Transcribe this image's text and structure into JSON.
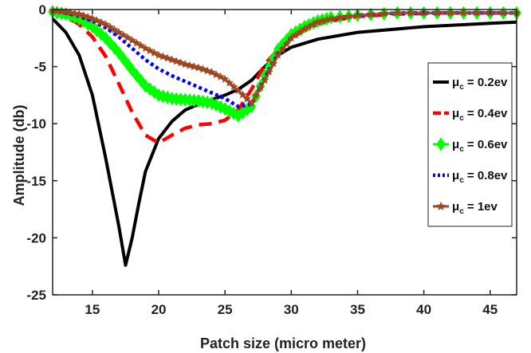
{
  "chart_data": {
    "type": "line",
    "xlabel": "Patch size (micro meter)",
    "ylabel": "Amplitude (db)",
    "xlim": [
      12,
      47
    ],
    "ylim": [
      -25,
      0
    ],
    "xticks": [
      15,
      20,
      25,
      30,
      35,
      40,
      45
    ],
    "yticks": [
      0,
      -5,
      -10,
      -15,
      -20,
      -25
    ],
    "grid": false,
    "legend": {
      "placement": "right"
    },
    "series": [
      {
        "name": "μc = 0.2ev",
        "name_parts": {
          "mu": "μ",
          "sub": "c",
          "rest": " = 0.2ev"
        },
        "color": "#000000",
        "style": "solid",
        "x": [
          12,
          13,
          14,
          15,
          16,
          17,
          17.5,
          18,
          18.5,
          19,
          20,
          21,
          22,
          23,
          24,
          25,
          26,
          27,
          28,
          29,
          30,
          32,
          35,
          40,
          45,
          47
        ],
        "y": [
          -0.8,
          -2,
          -4,
          -7.5,
          -13,
          -19,
          -22.4,
          -20,
          -17,
          -14.2,
          -11.3,
          -9.8,
          -8.8,
          -8.3,
          -7.9,
          -7.5,
          -7,
          -6.2,
          -5,
          -4,
          -3.3,
          -2.6,
          -2,
          -1.5,
          -1.2,
          -1.1
        ]
      },
      {
        "name": "μc = 0.4ev",
        "name_parts": {
          "mu": "μ",
          "sub": "c",
          "rest": " = 0.4ev"
        },
        "color": "#ff0000",
        "style": "dashed",
        "x": [
          12,
          13,
          14,
          15,
          16,
          17,
          18,
          19,
          20,
          21,
          22,
          23,
          24,
          25,
          26,
          27,
          28,
          29,
          30,
          31,
          32,
          33,
          35,
          38,
          41,
          44,
          47
        ],
        "y": [
          -0.3,
          -0.6,
          -1.3,
          -2.4,
          -4.1,
          -6.5,
          -9,
          -11,
          -11.7,
          -11,
          -10.4,
          -10.1,
          -10,
          -9.7,
          -8.8,
          -7,
          -4.8,
          -3.5,
          -2.5,
          -1.8,
          -1.3,
          -1,
          -0.6,
          -0.4,
          -0.3,
          -0.3,
          -0.3
        ]
      },
      {
        "name": "μc = 0.6ev",
        "name_parts": {
          "mu": "μ",
          "sub": "c",
          "rest": " = 0.6ev"
        },
        "color": "#00ff00",
        "style": "diamond",
        "x": [
          12,
          13,
          14,
          15,
          16,
          17,
          18,
          19,
          20,
          21,
          22,
          23,
          24,
          25,
          26,
          27,
          28,
          29,
          30,
          31,
          32,
          33,
          35,
          38,
          41,
          44,
          47
        ],
        "y": [
          -0.2,
          -0.4,
          -0.8,
          -1.5,
          -2.5,
          -3.8,
          -5.3,
          -6.7,
          -7.5,
          -7.8,
          -7.9,
          -8,
          -8.2,
          -8.7,
          -9.3,
          -8.5,
          -5.8,
          -3.5,
          -2.2,
          -1.5,
          -1,
          -0.7,
          -0.5,
          -0.3,
          -0.3,
          -0.3,
          -0.3
        ]
      },
      {
        "name": "μc = 0.8ev",
        "name_parts": {
          "mu": "μ",
          "sub": "c",
          "rest": " = 0.8ev"
        },
        "color": "#0000ff",
        "style": "dotted",
        "x": [
          12,
          13,
          14,
          15,
          16,
          17,
          18,
          19,
          20,
          21,
          22,
          23,
          24,
          25,
          26,
          27,
          28,
          29,
          30,
          31,
          32,
          33,
          35,
          38,
          41,
          44,
          47
        ],
        "y": [
          -0.1,
          -0.3,
          -0.6,
          -1,
          -1.6,
          -2.4,
          -3.4,
          -4.4,
          -5.2,
          -5.8,
          -6.3,
          -6.8,
          -7.3,
          -7.8,
          -8.5,
          -8.3,
          -6,
          -3.8,
          -2.5,
          -1.7,
          -1.1,
          -0.8,
          -0.5,
          -0.3,
          -0.3,
          -0.3,
          -0.3
        ]
      },
      {
        "name": "μc = 1ev",
        "name_parts": {
          "mu": "μ",
          "sub": "c",
          "rest": " = 1ev"
        },
        "color": "#a0461e",
        "style": "star",
        "x": [
          12,
          13,
          14,
          15,
          16,
          17,
          18,
          19,
          20,
          21,
          22,
          23,
          24,
          25,
          26,
          27,
          28,
          29,
          30,
          31,
          32,
          33,
          35,
          38,
          41,
          44,
          47
        ],
        "y": [
          -0.1,
          -0.2,
          -0.4,
          -0.8,
          -1.3,
          -2,
          -2.7,
          -3.4,
          -4,
          -4.4,
          -4.8,
          -5.1,
          -5.5,
          -6.1,
          -7.1,
          -8.2,
          -6.2,
          -4,
          -2.5,
          -1.7,
          -1.1,
          -0.8,
          -0.5,
          -0.3,
          -0.3,
          -0.3,
          -0.3
        ]
      }
    ]
  }
}
